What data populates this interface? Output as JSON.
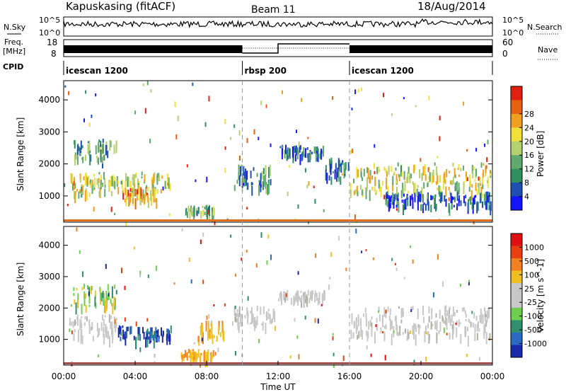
{
  "header": {
    "station": "Kapuskasing (fitACF)",
    "beam": "Beam 11",
    "date": "18/Aug/2014"
  },
  "panels": {
    "nsky_label": "N.Sky",
    "nsky_ticks": [
      "10^5",
      "10^0"
    ],
    "nsky_right_ticks": [
      "10^5",
      "10^0"
    ],
    "nsearch_label": "N.Search",
    "freq_label_top": "Freq.",
    "freq_label_bottom": "[MHz]",
    "freq_ticks": [
      "18",
      "8"
    ],
    "nave_ticks": [
      "60",
      "0"
    ],
    "nave_label": "Nave",
    "cpid_label": "CPID",
    "cpid_segments": [
      {
        "name": "icescan 1200",
        "start": 0,
        "end": 10
      },
      {
        "name": "rbsp 200",
        "start": 10,
        "end": 16
      },
      {
        "name": "icescan 1200",
        "start": 16,
        "end": 24
      }
    ]
  },
  "chart_data": [
    {
      "type": "heatmap",
      "panel": "power",
      "ylabel": "Slant Range [km]",
      "xlabel": "",
      "ylim": [
        180,
        4600
      ],
      "yticks": [
        1000,
        2000,
        3000,
        4000
      ],
      "colorbar_label": "Power [dB]",
      "colorbar_ticks": [
        "4",
        "8",
        "12",
        "16",
        "20",
        "24",
        "28"
      ],
      "colorbar_colors": [
        "#1414ff",
        "#1f4fb0",
        "#2f8f5f",
        "#5fa86e",
        "#b5d06e",
        "#f0e03a",
        "#f0a020",
        "#e86010",
        "#e02010"
      ],
      "regions": [
        {
          "t0": 0.3,
          "t1": 6.0,
          "r0": 1100,
          "r1": 1750,
          "level": 0.55
        },
        {
          "t0": 0.5,
          "t1": 3.0,
          "r0": 2200,
          "r1": 2800,
          "level": 0.35
        },
        {
          "t0": 3.2,
          "t1": 5.2,
          "r0": 900,
          "r1": 1300,
          "level": 0.7
        },
        {
          "t0": 6.8,
          "t1": 8.4,
          "r0": 500,
          "r1": 720,
          "level": 0.4
        },
        {
          "t0": 9.5,
          "t1": 11.8,
          "r0": 1300,
          "r1": 2000,
          "level": 0.3
        },
        {
          "t0": 12.0,
          "t1": 14.6,
          "r0": 2300,
          "r1": 2600,
          "level": 0.2
        },
        {
          "t0": 14.6,
          "t1": 16.0,
          "r0": 1600,
          "r1": 2200,
          "level": 0.25
        },
        {
          "t0": 16.0,
          "t1": 23.9,
          "r0": 1150,
          "r1": 2050,
          "level": 0.55
        },
        {
          "t0": 18.0,
          "t1": 23.9,
          "r0": 700,
          "r1": 1150,
          "level": 0.15
        }
      ]
    },
    {
      "type": "heatmap",
      "panel": "velocity",
      "ylabel": "Slant Range [km]",
      "xlabel": "Time UT",
      "ylim": [
        180,
        4600
      ],
      "yticks": [
        1000,
        2000,
        3000,
        4000
      ],
      "xticks": [
        "00:00",
        "04:00",
        "08:00",
        "12:00",
        "16:00",
        "20:00",
        "00:00"
      ],
      "xlim": [
        0,
        24
      ],
      "colorbar_label": "Velocity [m s^-1]",
      "colorbar_ticks": [
        "1000",
        "500",
        "100",
        "25",
        "-25",
        "-100",
        "-500",
        "-1000"
      ],
      "colorbar_colors": [
        "#1a2aa8",
        "#2a6ac0",
        "#2f8f6f",
        "#6fcf4f",
        "#c8c8c8",
        "#c8c8c8",
        "#f0c020",
        "#f08020",
        "#e84010",
        "#e01010"
      ],
      "regions": [
        {
          "t0": 0.3,
          "t1": 3.0,
          "r0": 1100,
          "r1": 1800,
          "kind": "gray"
        },
        {
          "t0": 0.5,
          "t1": 3.0,
          "r0": 2100,
          "r1": 2800,
          "kind": "green"
        },
        {
          "t0": 3.0,
          "t1": 6.0,
          "r0": 1050,
          "r1": 1450,
          "kind": "blue"
        },
        {
          "t0": 6.5,
          "t1": 8.5,
          "r0": 450,
          "r1": 700,
          "kind": "orange"
        },
        {
          "t0": 7.5,
          "t1": 9.0,
          "r0": 1100,
          "r1": 1600,
          "kind": "orange"
        },
        {
          "t0": 9.5,
          "t1": 11.8,
          "r0": 1500,
          "r1": 2100,
          "kind": "gray"
        },
        {
          "t0": 12.0,
          "t1": 14.6,
          "r0": 2300,
          "r1": 2600,
          "kind": "gray"
        },
        {
          "t0": 16.0,
          "t1": 23.9,
          "r0": 1100,
          "r1": 2100,
          "kind": "gray"
        }
      ]
    }
  ]
}
